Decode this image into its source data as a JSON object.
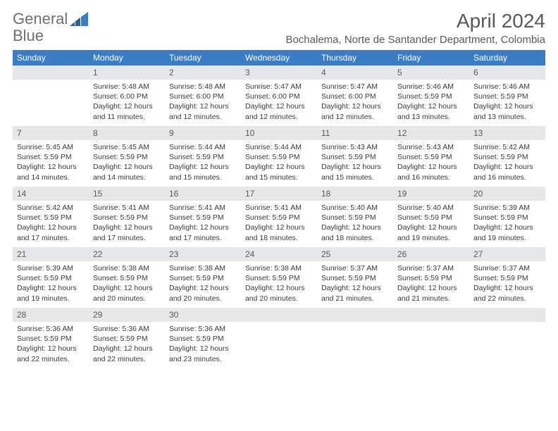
{
  "logo": {
    "text1": "General",
    "text2": "Blue"
  },
  "title": "April 2024",
  "location": "Bochalema, Norte de Santander Department, Colombia",
  "colors": {
    "header_bg": "#3b7dc4",
    "header_text": "#ffffff",
    "daynum_bg": "#e6e7e8",
    "text": "#58595b",
    "body_bg": "#ffffff"
  },
  "weekdays": [
    "Sunday",
    "Monday",
    "Tuesday",
    "Wednesday",
    "Thursday",
    "Friday",
    "Saturday"
  ],
  "weeks": [
    [
      {
        "n": "",
        "lines": []
      },
      {
        "n": "1",
        "lines": [
          "Sunrise: 5:48 AM",
          "Sunset: 6:00 PM",
          "Daylight: 12 hours and 11 minutes."
        ]
      },
      {
        "n": "2",
        "lines": [
          "Sunrise: 5:48 AM",
          "Sunset: 6:00 PM",
          "Daylight: 12 hours and 12 minutes."
        ]
      },
      {
        "n": "3",
        "lines": [
          "Sunrise: 5:47 AM",
          "Sunset: 6:00 PM",
          "Daylight: 12 hours and 12 minutes."
        ]
      },
      {
        "n": "4",
        "lines": [
          "Sunrise: 5:47 AM",
          "Sunset: 6:00 PM",
          "Daylight: 12 hours and 12 minutes."
        ]
      },
      {
        "n": "5",
        "lines": [
          "Sunrise: 5:46 AM",
          "Sunset: 5:59 PM",
          "Daylight: 12 hours and 13 minutes."
        ]
      },
      {
        "n": "6",
        "lines": [
          "Sunrise: 5:46 AM",
          "Sunset: 5:59 PM",
          "Daylight: 12 hours and 13 minutes."
        ]
      }
    ],
    [
      {
        "n": "7",
        "lines": [
          "Sunrise: 5:45 AM",
          "Sunset: 5:59 PM",
          "Daylight: 12 hours and 14 minutes."
        ]
      },
      {
        "n": "8",
        "lines": [
          "Sunrise: 5:45 AM",
          "Sunset: 5:59 PM",
          "Daylight: 12 hours and 14 minutes."
        ]
      },
      {
        "n": "9",
        "lines": [
          "Sunrise: 5:44 AM",
          "Sunset: 5:59 PM",
          "Daylight: 12 hours and 15 minutes."
        ]
      },
      {
        "n": "10",
        "lines": [
          "Sunrise: 5:44 AM",
          "Sunset: 5:59 PM",
          "Daylight: 12 hours and 15 minutes."
        ]
      },
      {
        "n": "11",
        "lines": [
          "Sunrise: 5:43 AM",
          "Sunset: 5:59 PM",
          "Daylight: 12 hours and 15 minutes."
        ]
      },
      {
        "n": "12",
        "lines": [
          "Sunrise: 5:43 AM",
          "Sunset: 5:59 PM",
          "Daylight: 12 hours and 16 minutes."
        ]
      },
      {
        "n": "13",
        "lines": [
          "Sunrise: 5:42 AM",
          "Sunset: 5:59 PM",
          "Daylight: 12 hours and 16 minutes."
        ]
      }
    ],
    [
      {
        "n": "14",
        "lines": [
          "Sunrise: 5:42 AM",
          "Sunset: 5:59 PM",
          "Daylight: 12 hours and 17 minutes."
        ]
      },
      {
        "n": "15",
        "lines": [
          "Sunrise: 5:41 AM",
          "Sunset: 5:59 PM",
          "Daylight: 12 hours and 17 minutes."
        ]
      },
      {
        "n": "16",
        "lines": [
          "Sunrise: 5:41 AM",
          "Sunset: 5:59 PM",
          "Daylight: 12 hours and 17 minutes."
        ]
      },
      {
        "n": "17",
        "lines": [
          "Sunrise: 5:41 AM",
          "Sunset: 5:59 PM",
          "Daylight: 12 hours and 18 minutes."
        ]
      },
      {
        "n": "18",
        "lines": [
          "Sunrise: 5:40 AM",
          "Sunset: 5:59 PM",
          "Daylight: 12 hours and 18 minutes."
        ]
      },
      {
        "n": "19",
        "lines": [
          "Sunrise: 5:40 AM",
          "Sunset: 5:59 PM",
          "Daylight: 12 hours and 19 minutes."
        ]
      },
      {
        "n": "20",
        "lines": [
          "Sunrise: 5:39 AM",
          "Sunset: 5:59 PM",
          "Daylight: 12 hours and 19 minutes."
        ]
      }
    ],
    [
      {
        "n": "21",
        "lines": [
          "Sunrise: 5:39 AM",
          "Sunset: 5:59 PM",
          "Daylight: 12 hours and 19 minutes."
        ]
      },
      {
        "n": "22",
        "lines": [
          "Sunrise: 5:38 AM",
          "Sunset: 5:59 PM",
          "Daylight: 12 hours and 20 minutes."
        ]
      },
      {
        "n": "23",
        "lines": [
          "Sunrise: 5:38 AM",
          "Sunset: 5:59 PM",
          "Daylight: 12 hours and 20 minutes."
        ]
      },
      {
        "n": "24",
        "lines": [
          "Sunrise: 5:38 AM",
          "Sunset: 5:59 PM",
          "Daylight: 12 hours and 20 minutes."
        ]
      },
      {
        "n": "25",
        "lines": [
          "Sunrise: 5:37 AM",
          "Sunset: 5:59 PM",
          "Daylight: 12 hours and 21 minutes."
        ]
      },
      {
        "n": "26",
        "lines": [
          "Sunrise: 5:37 AM",
          "Sunset: 5:59 PM",
          "Daylight: 12 hours and 21 minutes."
        ]
      },
      {
        "n": "27",
        "lines": [
          "Sunrise: 5:37 AM",
          "Sunset: 5:59 PM",
          "Daylight: 12 hours and 22 minutes."
        ]
      }
    ],
    [
      {
        "n": "28",
        "lines": [
          "Sunrise: 5:36 AM",
          "Sunset: 5:59 PM",
          "Daylight: 12 hours and 22 minutes."
        ]
      },
      {
        "n": "29",
        "lines": [
          "Sunrise: 5:36 AM",
          "Sunset: 5:59 PM",
          "Daylight: 12 hours and 22 minutes."
        ]
      },
      {
        "n": "30",
        "lines": [
          "Sunrise: 5:36 AM",
          "Sunset: 5:59 PM",
          "Daylight: 12 hours and 23 minutes."
        ]
      },
      {
        "n": "",
        "lines": []
      },
      {
        "n": "",
        "lines": []
      },
      {
        "n": "",
        "lines": []
      },
      {
        "n": "",
        "lines": []
      }
    ]
  ]
}
